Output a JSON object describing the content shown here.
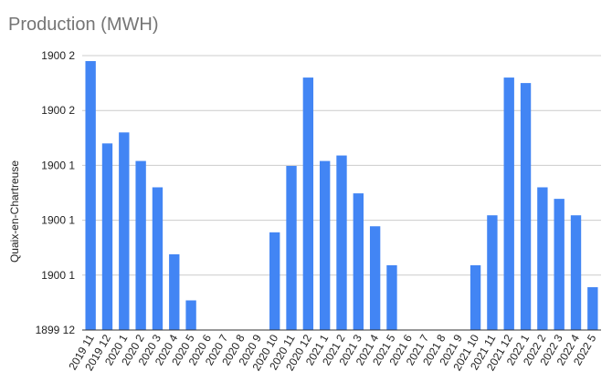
{
  "chart_data": {
    "type": "bar",
    "title": "Production (MWH)",
    "xlabel": "",
    "ylabel": "Quaix-en-Chartreuse",
    "y_tick_labels": [
      "1899 12",
      "1900 1",
      "1900 1",
      "1900 1",
      "1900 2",
      "1900 2"
    ],
    "ylim": [
      0,
      5
    ],
    "grid": true,
    "colors": {
      "bar": "#4285f4",
      "grid": "#cccccc",
      "axis": "#333333"
    },
    "categories": [
      "2019 11",
      "2019 12",
      "2020 1",
      "2020 2",
      "2020 3",
      "2020 4",
      "2020 5",
      "2020 6",
      "2020 7",
      "2020 8",
      "2020 9",
      "2020 10",
      "2020 11",
      "2020 12",
      "2021 1",
      "2021 2",
      "2021 3",
      "2021 4",
      "2021 5",
      "2021 6",
      "2021 7",
      "2021 8",
      "2021 9",
      "2021 10",
      "2021 11",
      "2021 12",
      "2022 1",
      "2022 2",
      "2022 3",
      "2022 4",
      "2022 5"
    ],
    "values": [
      4.9,
      3.4,
      3.6,
      3.08,
      2.6,
      1.38,
      0.54,
      0,
      0,
      0,
      0,
      1.78,
      2.99,
      4.6,
      3.08,
      3.18,
      2.49,
      1.89,
      1.18,
      0,
      0,
      0,
      0,
      1.18,
      2.09,
      4.6,
      4.5,
      2.6,
      2.39,
      2.09,
      0.78
    ]
  }
}
